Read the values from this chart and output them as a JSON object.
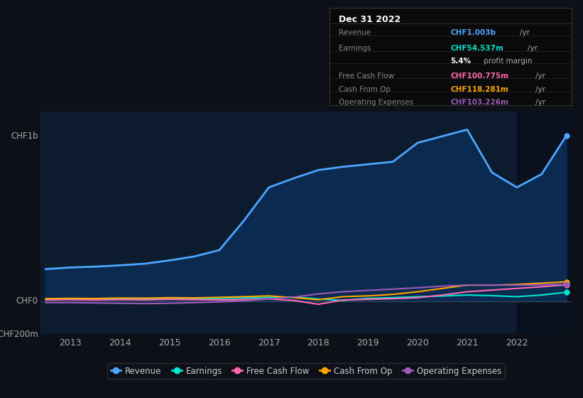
{
  "background_color": "#0d1117",
  "plot_bg_color": "#0d1b2e",
  "info_box_bg": "#0a0a0a",
  "info_box_border": "#333333",
  "ylabel_chf1b": "CHF1b",
  "ylabel_chf0": "CHF0",
  "ylabel_neg": "-CHF200m",
  "ylim_min": -200,
  "ylim_max": 1150,
  "xlim_min": 2012.4,
  "xlim_max": 2023.1,
  "x_ticks": [
    2013,
    2014,
    2015,
    2016,
    2017,
    2018,
    2019,
    2020,
    2021,
    2022
  ],
  "years": [
    2012.5,
    2013.0,
    2013.5,
    2014.0,
    2014.5,
    2015.0,
    2015.5,
    2016.0,
    2016.5,
    2017.0,
    2017.5,
    2018.0,
    2018.5,
    2019.0,
    2019.5,
    2020.0,
    2020.5,
    2021.0,
    2021.5,
    2022.0,
    2022.5,
    2023.0
  ],
  "revenue": [
    195,
    205,
    210,
    218,
    228,
    248,
    272,
    310,
    490,
    690,
    745,
    795,
    815,
    830,
    845,
    960,
    1000,
    1040,
    780,
    690,
    770,
    1003
  ],
  "earnings": [
    12,
    13,
    12,
    14,
    13,
    15,
    16,
    18,
    20,
    24,
    26,
    14,
    5,
    18,
    22,
    28,
    32,
    38,
    34,
    28,
    38,
    55
  ],
  "fcf": [
    8,
    10,
    8,
    10,
    9,
    12,
    10,
    8,
    10,
    14,
    5,
    -18,
    8,
    12,
    16,
    22,
    38,
    58,
    68,
    78,
    88,
    100
  ],
  "cash_from_op": [
    16,
    18,
    17,
    20,
    19,
    22,
    21,
    24,
    28,
    33,
    22,
    10,
    28,
    33,
    42,
    58,
    78,
    98,
    98,
    102,
    110,
    118
  ],
  "op_expenses": [
    -8,
    -8,
    -10,
    -12,
    -14,
    -12,
    -8,
    -4,
    3,
    14,
    25,
    45,
    58,
    66,
    74,
    82,
    92,
    98,
    98,
    98,
    100,
    103
  ],
  "revenue_color": "#4da6ff",
  "revenue_fill": "#0a2a50",
  "earnings_color": "#00e5cc",
  "fcf_color": "#ff69b4",
  "cashop_color": "#ffa500",
  "opexp_color": "#9b59b6",
  "highlight_x_start": 2022.0,
  "highlight_x_end": 2023.1,
  "info_date": "Dec 31 2022",
  "info_rows": [
    {
      "label": "Revenue",
      "value": "CHF1.003b",
      "unit": "/yr",
      "vcolor": "#4da6ff"
    },
    {
      "label": "Earnings",
      "value": "CHF54.537m",
      "unit": "/yr",
      "vcolor": "#00e5cc"
    },
    {
      "label": "",
      "value": "5.4%",
      "unit": " profit margin",
      "vcolor": "#ffffff"
    },
    {
      "label": "Free Cash Flow",
      "value": "CHF100.775m",
      "unit": "/yr",
      "vcolor": "#ff69b4"
    },
    {
      "label": "Cash From Op",
      "value": "CHF118.281m",
      "unit": "/yr",
      "vcolor": "#ffa500"
    },
    {
      "label": "Operating Expenses",
      "value": "CHF103.226m",
      "unit": "/yr",
      "vcolor": "#9b59b6"
    }
  ],
  "legend": [
    {
      "label": "Revenue",
      "color": "#4da6ff"
    },
    {
      "label": "Earnings",
      "color": "#00e5cc"
    },
    {
      "label": "Free Cash Flow",
      "color": "#ff69b4"
    },
    {
      "label": "Cash From Op",
      "color": "#ffa500"
    },
    {
      "label": "Operating Expenses",
      "color": "#9b59b6"
    }
  ]
}
